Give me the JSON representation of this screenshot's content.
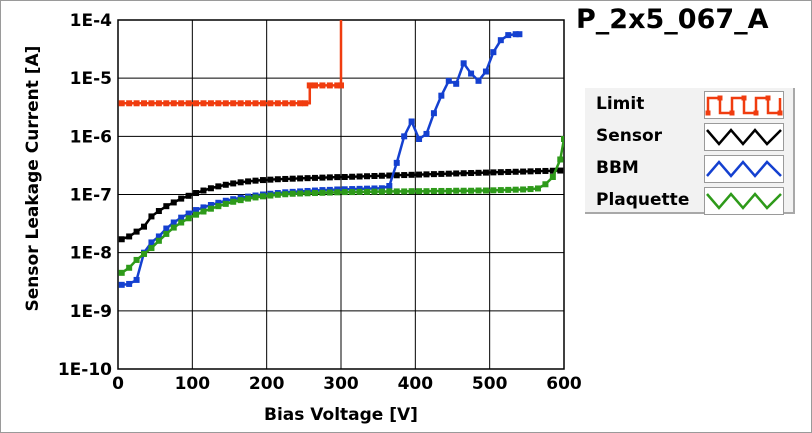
{
  "chart_data": {
    "type": "line",
    "title": "P_2x5_067_A",
    "xlabel": "Bias Voltage [V]",
    "ylabel": "Sensor Leakage Current [A]",
    "xlim": [
      0,
      600
    ],
    "ylim": [
      1e-10,
      0.0001
    ],
    "y_scale": "log",
    "grid": true,
    "x_ticks": [
      0,
      100,
      200,
      300,
      400,
      500,
      600
    ],
    "x_tick_labels": [
      "0",
      "100",
      "200",
      "300",
      "400",
      "500",
      "600"
    ],
    "y_ticks": [
      1e-10,
      1e-09,
      1e-08,
      1e-07,
      1e-06,
      1e-05,
      0.0001
    ],
    "y_tick_labels": [
      "1E-10",
      "1E-9",
      "1E-8",
      "1E-7",
      "1E-6",
      "1E-5",
      "1E-4"
    ],
    "legend_position": "right",
    "series": [
      {
        "name": "Limit",
        "color": "#f03c0f",
        "step": true,
        "x": [
          5,
          15,
          25,
          35,
          45,
          55,
          65,
          75,
          85,
          95,
          105,
          115,
          125,
          135,
          145,
          155,
          165,
          175,
          185,
          195,
          205,
          215,
          225,
          235,
          245,
          252,
          258,
          265,
          275,
          285,
          295,
          300,
          300
        ],
        "y": [
          3.7e-06,
          3.7e-06,
          3.7e-06,
          3.7e-06,
          3.7e-06,
          3.7e-06,
          3.7e-06,
          3.7e-06,
          3.7e-06,
          3.7e-06,
          3.7e-06,
          3.7e-06,
          3.7e-06,
          3.7e-06,
          3.7e-06,
          3.7e-06,
          3.7e-06,
          3.7e-06,
          3.7e-06,
          3.7e-06,
          3.7e-06,
          3.7e-06,
          3.7e-06,
          3.7e-06,
          3.7e-06,
          3.7e-06,
          7.5e-06,
          7.5e-06,
          7.5e-06,
          7.5e-06,
          7.5e-06,
          7.5e-06,
          0.0001
        ]
      },
      {
        "name": "Sensor",
        "color": "#000000",
        "step": false,
        "x": [
          5,
          15,
          25,
          35,
          45,
          55,
          65,
          75,
          85,
          95,
          105,
          115,
          125,
          135,
          145,
          155,
          165,
          175,
          185,
          195,
          205,
          215,
          225,
          235,
          245,
          255,
          265,
          275,
          285,
          295,
          305,
          315,
          325,
          335,
          345,
          355,
          365,
          375,
          385,
          395,
          405,
          415,
          425,
          435,
          445,
          455,
          465,
          475,
          485,
          495,
          505,
          515,
          525,
          535,
          545,
          555,
          565,
          575,
          585,
          595
        ],
        "y": [
          1.7e-08,
          1.9e-08,
          2.3e-08,
          2.8e-08,
          4.2e-08,
          5.2e-08,
          6.3e-08,
          7.3e-08,
          8.5e-08,
          9.5e-08,
          1.06e-07,
          1.17e-07,
          1.28e-07,
          1.38e-07,
          1.47e-07,
          1.55e-07,
          1.62e-07,
          1.68e-07,
          1.73e-07,
          1.77e-07,
          1.8e-07,
          1.83e-07,
          1.85e-07,
          1.87e-07,
          1.89e-07,
          1.91e-07,
          1.93e-07,
          1.95e-07,
          1.97e-07,
          1.99e-07,
          2e-07,
          2.02e-07,
          2.04e-07,
          2.06e-07,
          2.08e-07,
          2.1e-07,
          2.12e-07,
          2.14e-07,
          2.16e-07,
          2.18e-07,
          2.2e-07,
          2.22e-07,
          2.24e-07,
          2.26e-07,
          2.28e-07,
          2.3e-07,
          2.32e-07,
          2.34e-07,
          2.36e-07,
          2.38e-07,
          2.4e-07,
          2.42e-07,
          2.44e-07,
          2.46e-07,
          2.48e-07,
          2.5e-07,
          2.52e-07,
          2.54e-07,
          2.56e-07,
          2.58e-07
        ]
      },
      {
        "name": "BBM",
        "color": "#1440d0",
        "step": false,
        "x": [
          5,
          15,
          25,
          35,
          45,
          55,
          65,
          75,
          85,
          95,
          105,
          115,
          125,
          135,
          145,
          155,
          165,
          175,
          185,
          195,
          205,
          215,
          225,
          235,
          245,
          255,
          265,
          275,
          285,
          295,
          305,
          315,
          325,
          335,
          345,
          355,
          365,
          375,
          385,
          395,
          405,
          415,
          425,
          435,
          445,
          455,
          465,
          475,
          485,
          495,
          505,
          515,
          525,
          535,
          540
        ],
        "y": [
          2.8e-09,
          2.9e-09,
          3.4e-09,
          1e-08,
          1.5e-08,
          1.9e-08,
          2.6e-08,
          3.3e-08,
          4e-08,
          4.7e-08,
          5.4e-08,
          6e-08,
          6.6e-08,
          7.2e-08,
          7.8e-08,
          8.3e-08,
          8.8e-08,
          9.2e-08,
          9.6e-08,
          1e-07,
          1.03e-07,
          1.06e-07,
          1.09e-07,
          1.11e-07,
          1.13e-07,
          1.15e-07,
          1.17e-07,
          1.19e-07,
          1.2e-07,
          1.22e-07,
          1.23e-07,
          1.24e-07,
          1.25e-07,
          1.26e-07,
          1.27e-07,
          1.28e-07,
          1.4e-07,
          3.5e-07,
          1e-06,
          1.8e-06,
          9e-07,
          1.1e-06,
          2.5e-06,
          5e-06,
          9e-06,
          8e-06,
          1.8e-05,
          1.2e-05,
          9e-06,
          1.3e-05,
          2.8e-05,
          4.5e-05,
          5.5e-05,
          5.7e-05,
          5.7e-05
        ]
      },
      {
        "name": "Plaquette",
        "color": "#2e9a1a",
        "step": false,
        "x": [
          5,
          15,
          25,
          35,
          45,
          55,
          65,
          75,
          85,
          95,
          105,
          115,
          125,
          135,
          145,
          155,
          165,
          175,
          185,
          195,
          205,
          215,
          225,
          235,
          245,
          255,
          265,
          275,
          285,
          295,
          305,
          315,
          325,
          335,
          345,
          355,
          365,
          375,
          385,
          395,
          405,
          415,
          425,
          435,
          445,
          455,
          465,
          475,
          485,
          495,
          505,
          515,
          525,
          535,
          545,
          555,
          565,
          575,
          585,
          595,
          600
        ],
        "y": [
          4.5e-09,
          5.5e-09,
          7.5e-09,
          9.5e-09,
          1.2e-08,
          1.6e-08,
          2.1e-08,
          2.7e-08,
          3.3e-08,
          3.9e-08,
          4.5e-08,
          5.1e-08,
          5.7e-08,
          6.3e-08,
          6.9e-08,
          7.5e-08,
          8e-08,
          8.5e-08,
          8.9e-08,
          9.3e-08,
          9.6e-08,
          9.9e-08,
          1.01e-07,
          1.03e-07,
          1.04e-07,
          1.05e-07,
          1.06e-07,
          1.07e-07,
          1.08e-07,
          1.09e-07,
          1.1e-07,
          1.1e-07,
          1.11e-07,
          1.11e-07,
          1.12e-07,
          1.12e-07,
          1.13e-07,
          1.13e-07,
          1.13e-07,
          1.14e-07,
          1.14e-07,
          1.14e-07,
          1.15e-07,
          1.15e-07,
          1.15e-07,
          1.16e-07,
          1.16e-07,
          1.16e-07,
          1.17e-07,
          1.17e-07,
          1.18e-07,
          1.19e-07,
          1.2e-07,
          1.21e-07,
          1.22e-07,
          1.24e-07,
          1.27e-07,
          1.5e-07,
          2e-07,
          4e-07,
          9e-07
        ]
      }
    ]
  }
}
